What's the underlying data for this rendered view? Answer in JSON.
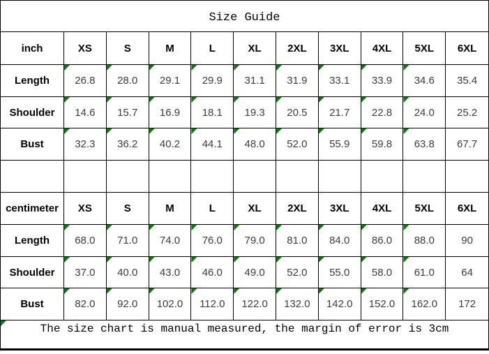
{
  "title": "Size Guide",
  "footer_note": "The size chart is manual measured, the margin of error is 3cm",
  "sizes": [
    "XS",
    "S",
    "M",
    "L",
    "XL",
    "2XL",
    "3XL",
    "4XL",
    "5XL",
    "6XL"
  ],
  "sections": [
    {
      "unit_label": "inch",
      "rows": [
        {
          "label": "Length",
          "values": [
            "26.8",
            "28.0",
            "29.1",
            "29.9",
            "31.1",
            "31.9",
            "33.1",
            "33.9",
            "34.6",
            "35.4"
          ]
        },
        {
          "label": "Shoulder",
          "values": [
            "14.6",
            "15.7",
            "16.9",
            "18.1",
            "19.3",
            "20.5",
            "21.7",
            "22.8",
            "24.0",
            "25.2"
          ]
        },
        {
          "label": "Bust",
          "values": [
            "32.3",
            "36.2",
            "40.2",
            "44.1",
            "48.0",
            "52.0",
            "55.9",
            "59.8",
            "63.8",
            "67.7"
          ]
        }
      ]
    },
    {
      "unit_label": "centimeter",
      "rows": [
        {
          "label": "Length",
          "values": [
            "68.0",
            "71.0",
            "74.0",
            "76.0",
            "79.0",
            "81.0",
            "84.0",
            "86.0",
            "88.0",
            "90"
          ]
        },
        {
          "label": "Shoulder",
          "values": [
            "37.0",
            "40.0",
            "43.0",
            "46.0",
            "49.0",
            "52.0",
            "55.0",
            "58.0",
            "61.0",
            "64"
          ]
        },
        {
          "label": "Bust",
          "values": [
            "82.0",
            "92.0",
            "102.0",
            "112.0",
            "122.0",
            "132.0",
            "142.0",
            "152.0",
            "162.0",
            "172"
          ]
        }
      ]
    }
  ],
  "corner_flag": {
    "color": "#008000",
    "on_value_cells_except_last_column": true,
    "on_footer_cell": true
  },
  "colors": {
    "border": "#000000",
    "background": "#ffffff",
    "label_text": "#000000",
    "value_text": "#3d3d3d"
  }
}
